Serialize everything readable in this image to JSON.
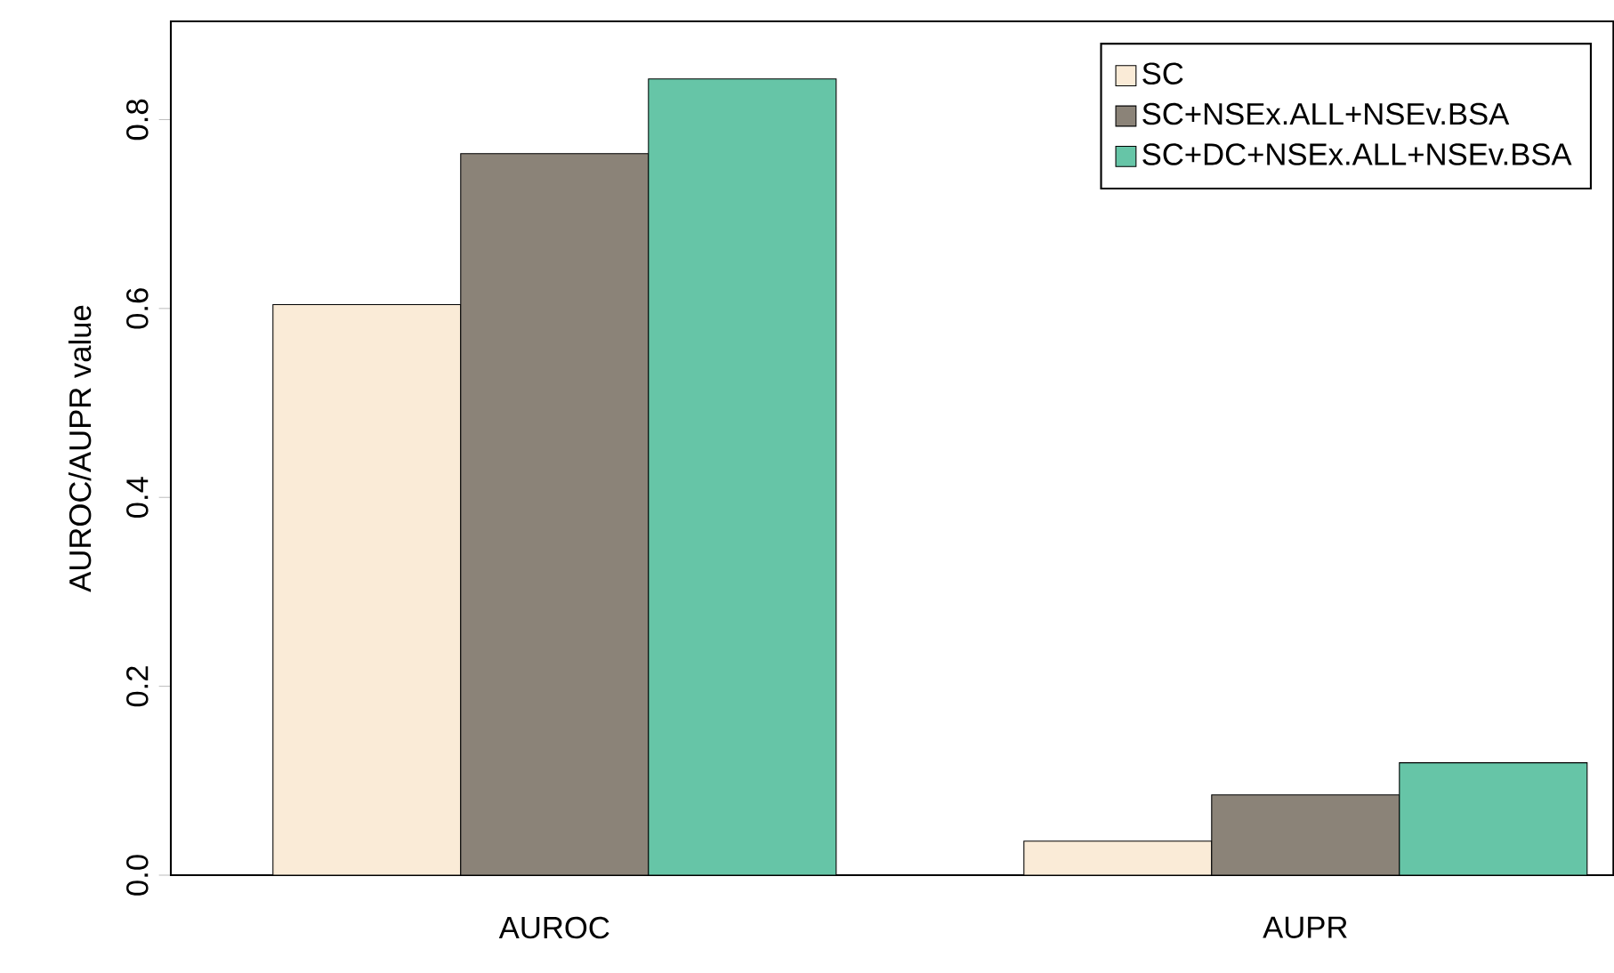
{
  "chart_data": {
    "type": "bar",
    "ylabel": "AUROC/AUPR value",
    "categories": [
      "AUROC",
      "AUPR"
    ],
    "series": [
      {
        "name": "SC",
        "color": "#faebd7",
        "values": [
          0.604,
          0.036
        ]
      },
      {
        "name": "SC+NSEx.ALL+NSEv.BSA",
        "color": "#8b8378",
        "values": [
          0.764,
          0.085
        ]
      },
      {
        "name": "SC+DC+NSEx.ALL+NSEv.BSA",
        "color": "#66c5a7",
        "values": [
          0.843,
          0.119
        ]
      }
    ],
    "ylim": [
      0,
      0.904
    ],
    "yticks": [
      {
        "value": 0,
        "label": "0.0"
      },
      0.2,
      0.4,
      0.6,
      0.8
    ],
    "legend": "top right"
  }
}
